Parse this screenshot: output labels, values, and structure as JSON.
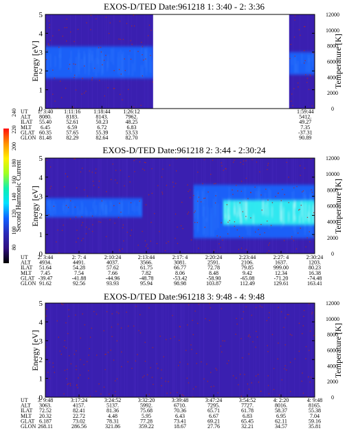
{
  "colors": {
    "background": "#ffffff",
    "low": "#3a1fb0",
    "mid": "#1a66ff",
    "high": "#33ffee",
    "speckle": "#aa2a2a"
  },
  "colorbar": {
    "label": "Second Harmonic Current",
    "ticks": [
      "240",
      "220",
      "200",
      "180",
      "160",
      "140",
      "120",
      "100",
      "80"
    ],
    "stops": [
      "#ff1010",
      "#ff9000",
      "#fff000",
      "#a0ff20",
      "#10f0b0",
      "#00e0ff",
      "#1060ff",
      "#2a2ab8",
      "#301080",
      "#000000"
    ]
  },
  "chart_data": [
    {
      "type": "heatmap",
      "title": "EXOS-D/TED  Date:961218  1: 3:40 - 2: 3:36",
      "ylabel": "Energy [eV]",
      "y2label": "Temperature [K]",
      "ylim": [
        0,
        5
      ],
      "y2lim": [
        0,
        12000
      ],
      "yticks": [
        "0",
        "1",
        "2",
        "3",
        "4",
        "5"
      ],
      "y2ticks": [
        "0",
        "2000",
        "4000",
        "6000",
        "8000",
        "10000",
        "12000"
      ],
      "data_gap": [
        0.4,
        0.905
      ],
      "bands": [
        {
          "x": [
            0.0,
            0.4
          ],
          "e": [
            1.6,
            3.3
          ],
          "level": "mid"
        },
        {
          "x": [
            0.905,
            1.0
          ],
          "e": [
            1.8,
            3.0
          ],
          "level": "mid"
        }
      ],
      "table": {
        "labels": [
          "UT",
          "ALT",
          "ILAT",
          "MLT",
          "GLAT",
          "GLON"
        ],
        "columns": [
          {
            "pos": 0.0,
            "values": [
              "1: 3:40",
              "8080.",
              "55.40",
              "6.45",
              "60.35",
              "81.48"
            ]
          },
          {
            "pos": 0.1,
            "values": [
              "1:11:16",
              "8183.",
              "52.61",
              "6.59",
              "57.65",
              "82.29"
            ]
          },
          {
            "pos": 0.21,
            "values": [
              "1:18:44",
              "8143.",
              "50.23",
              "6.72",
              "55.39",
              "82.64"
            ]
          },
          {
            "pos": 0.32,
            "values": [
              "1:26:12",
              "7962.",
              "48.25",
              "6.83",
              "53.53",
              "82.70"
            ]
          },
          {
            "pos": 0.965,
            "values": [
              "1:59:44",
              "5412.",
              "49.27",
              "7.35",
              "-37.31",
              "90.89"
            ]
          }
        ]
      }
    },
    {
      "type": "heatmap",
      "title": "EXOS-D/TED  Date:961218  2: 3:44 - 2:30:24",
      "ylabel": "Energy [eV]",
      "y2label": "Temperature [K]",
      "ylim": [
        0,
        5
      ],
      "y2lim": [
        0,
        12000
      ],
      "yticks": [
        "0",
        "1",
        "2",
        "3",
        "4",
        "5"
      ],
      "y2ticks": [
        "0",
        "2000",
        "4000",
        "6000",
        "8000",
        "10000",
        "12000"
      ],
      "data_gap": null,
      "bands": [
        {
          "x": [
            0.0,
            0.36
          ],
          "e": [
            1.9,
            2.9
          ],
          "level": "mid"
        },
        {
          "x": [
            0.55,
            1.0
          ],
          "e": [
            0.8,
            3.6
          ],
          "level": "mid"
        },
        {
          "x": [
            0.66,
            1.0
          ],
          "e": [
            1.5,
            2.8
          ],
          "level": "high"
        }
      ],
      "table": {
        "labels": [
          "UT",
          "ALT",
          "ILAT",
          "MLT",
          "GLAT",
          "GLON"
        ],
        "columns": [
          {
            "pos": 0.0,
            "values": [
              "2: 3:44",
              "4934.",
              "51.64",
              "7.45",
              "-39.47",
              "91.62"
            ]
          },
          {
            "pos": 0.125,
            "values": [
              "2: 7: 4",
              "4491.",
              "54.28",
              "7.54",
              "-41.88",
              "92.56"
            ]
          },
          {
            "pos": 0.25,
            "values": [
              "2:10:24",
              "4037.",
              "57.62",
              "7.66",
              "-44.96",
              "93.93"
            ]
          },
          {
            "pos": 0.375,
            "values": [
              "2:13:44",
              "3566.",
              "61.75",
              "7.82",
              "-48.78",
              "95.94"
            ]
          },
          {
            "pos": 0.5,
            "values": [
              "2:17: 4",
              "3081.",
              "66.77",
              "8.06",
              "-53.42",
              "98.98"
            ]
          },
          {
            "pos": 0.625,
            "values": [
              "2:20:24",
              "2591.",
              "72.78",
              "8.48",
              "-58.90",
              "103.87"
            ]
          },
          {
            "pos": 0.75,
            "values": [
              "2:23:44",
              "2106.",
              "79.85",
              "9.42",
              "-65.08",
              "112.49"
            ]
          },
          {
            "pos": 0.875,
            "values": [
              "2:27: 4",
              "1637.",
              "999.00",
              "12.34",
              "-71.20",
              "129.61"
            ]
          },
          {
            "pos": 1.0,
            "values": [
              "2:30:24",
              "1203.",
              "80.23",
              "16.38",
              "-74.48",
              "163.41"
            ]
          }
        ]
      }
    },
    {
      "type": "heatmap",
      "title": "EXOS-D/TED  Date:961218  3: 9:48 - 4: 9:48",
      "ylabel": "Energy [eV]",
      "y2label": "Temperature [K]",
      "ylim": [
        0,
        5
      ],
      "y2lim": [
        0,
        12000
      ],
      "yticks": [
        "0",
        "1",
        "2",
        "3",
        "4",
        "5"
      ],
      "y2ticks": [
        "0",
        "2000",
        "4000",
        "6000",
        "8000",
        "10000",
        "12000"
      ],
      "data_gap": null,
      "bands": [],
      "table": {
        "labels": [
          "UT",
          "ALT",
          "ILAT",
          "MLT",
          "GLAT",
          "GLON"
        ],
        "columns": [
          {
            "pos": 0.0,
            "values": [
              "3: 9:48",
              "3063.",
              "72.52",
              "20.32",
              "6.187",
              "268.11"
            ]
          },
          {
            "pos": 0.125,
            "values": [
              "3:17:24",
              "4157.",
              "82.41",
              "22.72",
              "73.02",
              "286.56"
            ]
          },
          {
            "pos": 0.25,
            "values": [
              "3:24:52",
              "5137.",
              "81.36",
              "4.48",
              "78.31",
              "321.86"
            ]
          },
          {
            "pos": 0.375,
            "values": [
              "3:32:20",
              "5992.",
              "75.68",
              "5.95",
              "77.28",
              "359.22"
            ]
          },
          {
            "pos": 0.5,
            "values": [
              "3:39:48",
              "6710.",
              "70.36",
              "6.43",
              "73.41",
              "18.67"
            ]
          },
          {
            "pos": 0.625,
            "values": [
              "3:47:24",
              "7295.",
              "65.71",
              "6.67",
              "69.21",
              "27.76"
            ]
          },
          {
            "pos": 0.75,
            "values": [
              "3:54:52",
              "7727.",
              "61.78",
              "6.83",
              "65.45",
              "32.21"
            ]
          },
          {
            "pos": 0.875,
            "values": [
              "4: 2:20",
              "8016.",
              "58.37",
              "6.95",
              "62.11",
              "34.57"
            ]
          },
          {
            "pos": 1.0,
            "values": [
              "4: 9:48",
              "8165.",
              "55.38",
              "7.04",
              "59.16",
              "35.81"
            ]
          }
        ]
      }
    }
  ]
}
